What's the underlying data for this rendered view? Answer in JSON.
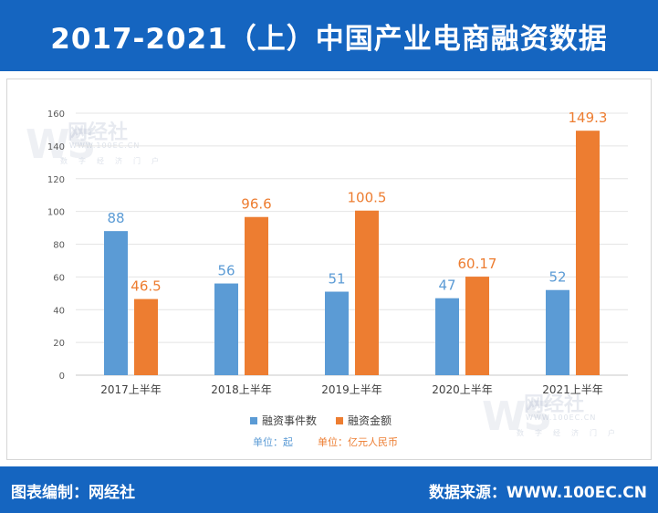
{
  "header": {
    "title": "2017-2021（上）中国产业电商融资数据"
  },
  "footer": {
    "left": "图表编制：网经社",
    "right": "数据来源：WWW.100EC.CN"
  },
  "watermark": {
    "logo": "WS",
    "name": "网经社",
    "url": "WWW.100EC.CN",
    "sub": "数字经济门户"
  },
  "chart_data": {
    "type": "bar",
    "categories": [
      "2017上半年",
      "2018上半年",
      "2019上半年",
      "2020上半年",
      "2021上半年"
    ],
    "series": [
      {
        "name": "融资事件数",
        "values": [
          88,
          56,
          51,
          47,
          52
        ],
        "labels": [
          "88",
          "56",
          "51",
          "47",
          "52"
        ],
        "color": "#5b9bd5"
      },
      {
        "name": "融资金额",
        "values": [
          46.5,
          96.6,
          100.5,
          60.17,
          149.3
        ],
        "labels": [
          "46.5",
          "96.6",
          "100.5",
          "60.17",
          "149.3"
        ],
        "color": "#ed7d31"
      }
    ],
    "ylim": [
      0,
      160
    ],
    "yticks": [
      "0",
      "20",
      "40",
      "60",
      "80",
      "100",
      "120",
      "140",
      "160"
    ],
    "grid": true,
    "legend_placement": "bottom",
    "units": [
      {
        "text": "单位：起",
        "color": "#5b9bd5"
      },
      {
        "text": "单位：亿元人民币",
        "color": "#ed7d31"
      }
    ]
  }
}
